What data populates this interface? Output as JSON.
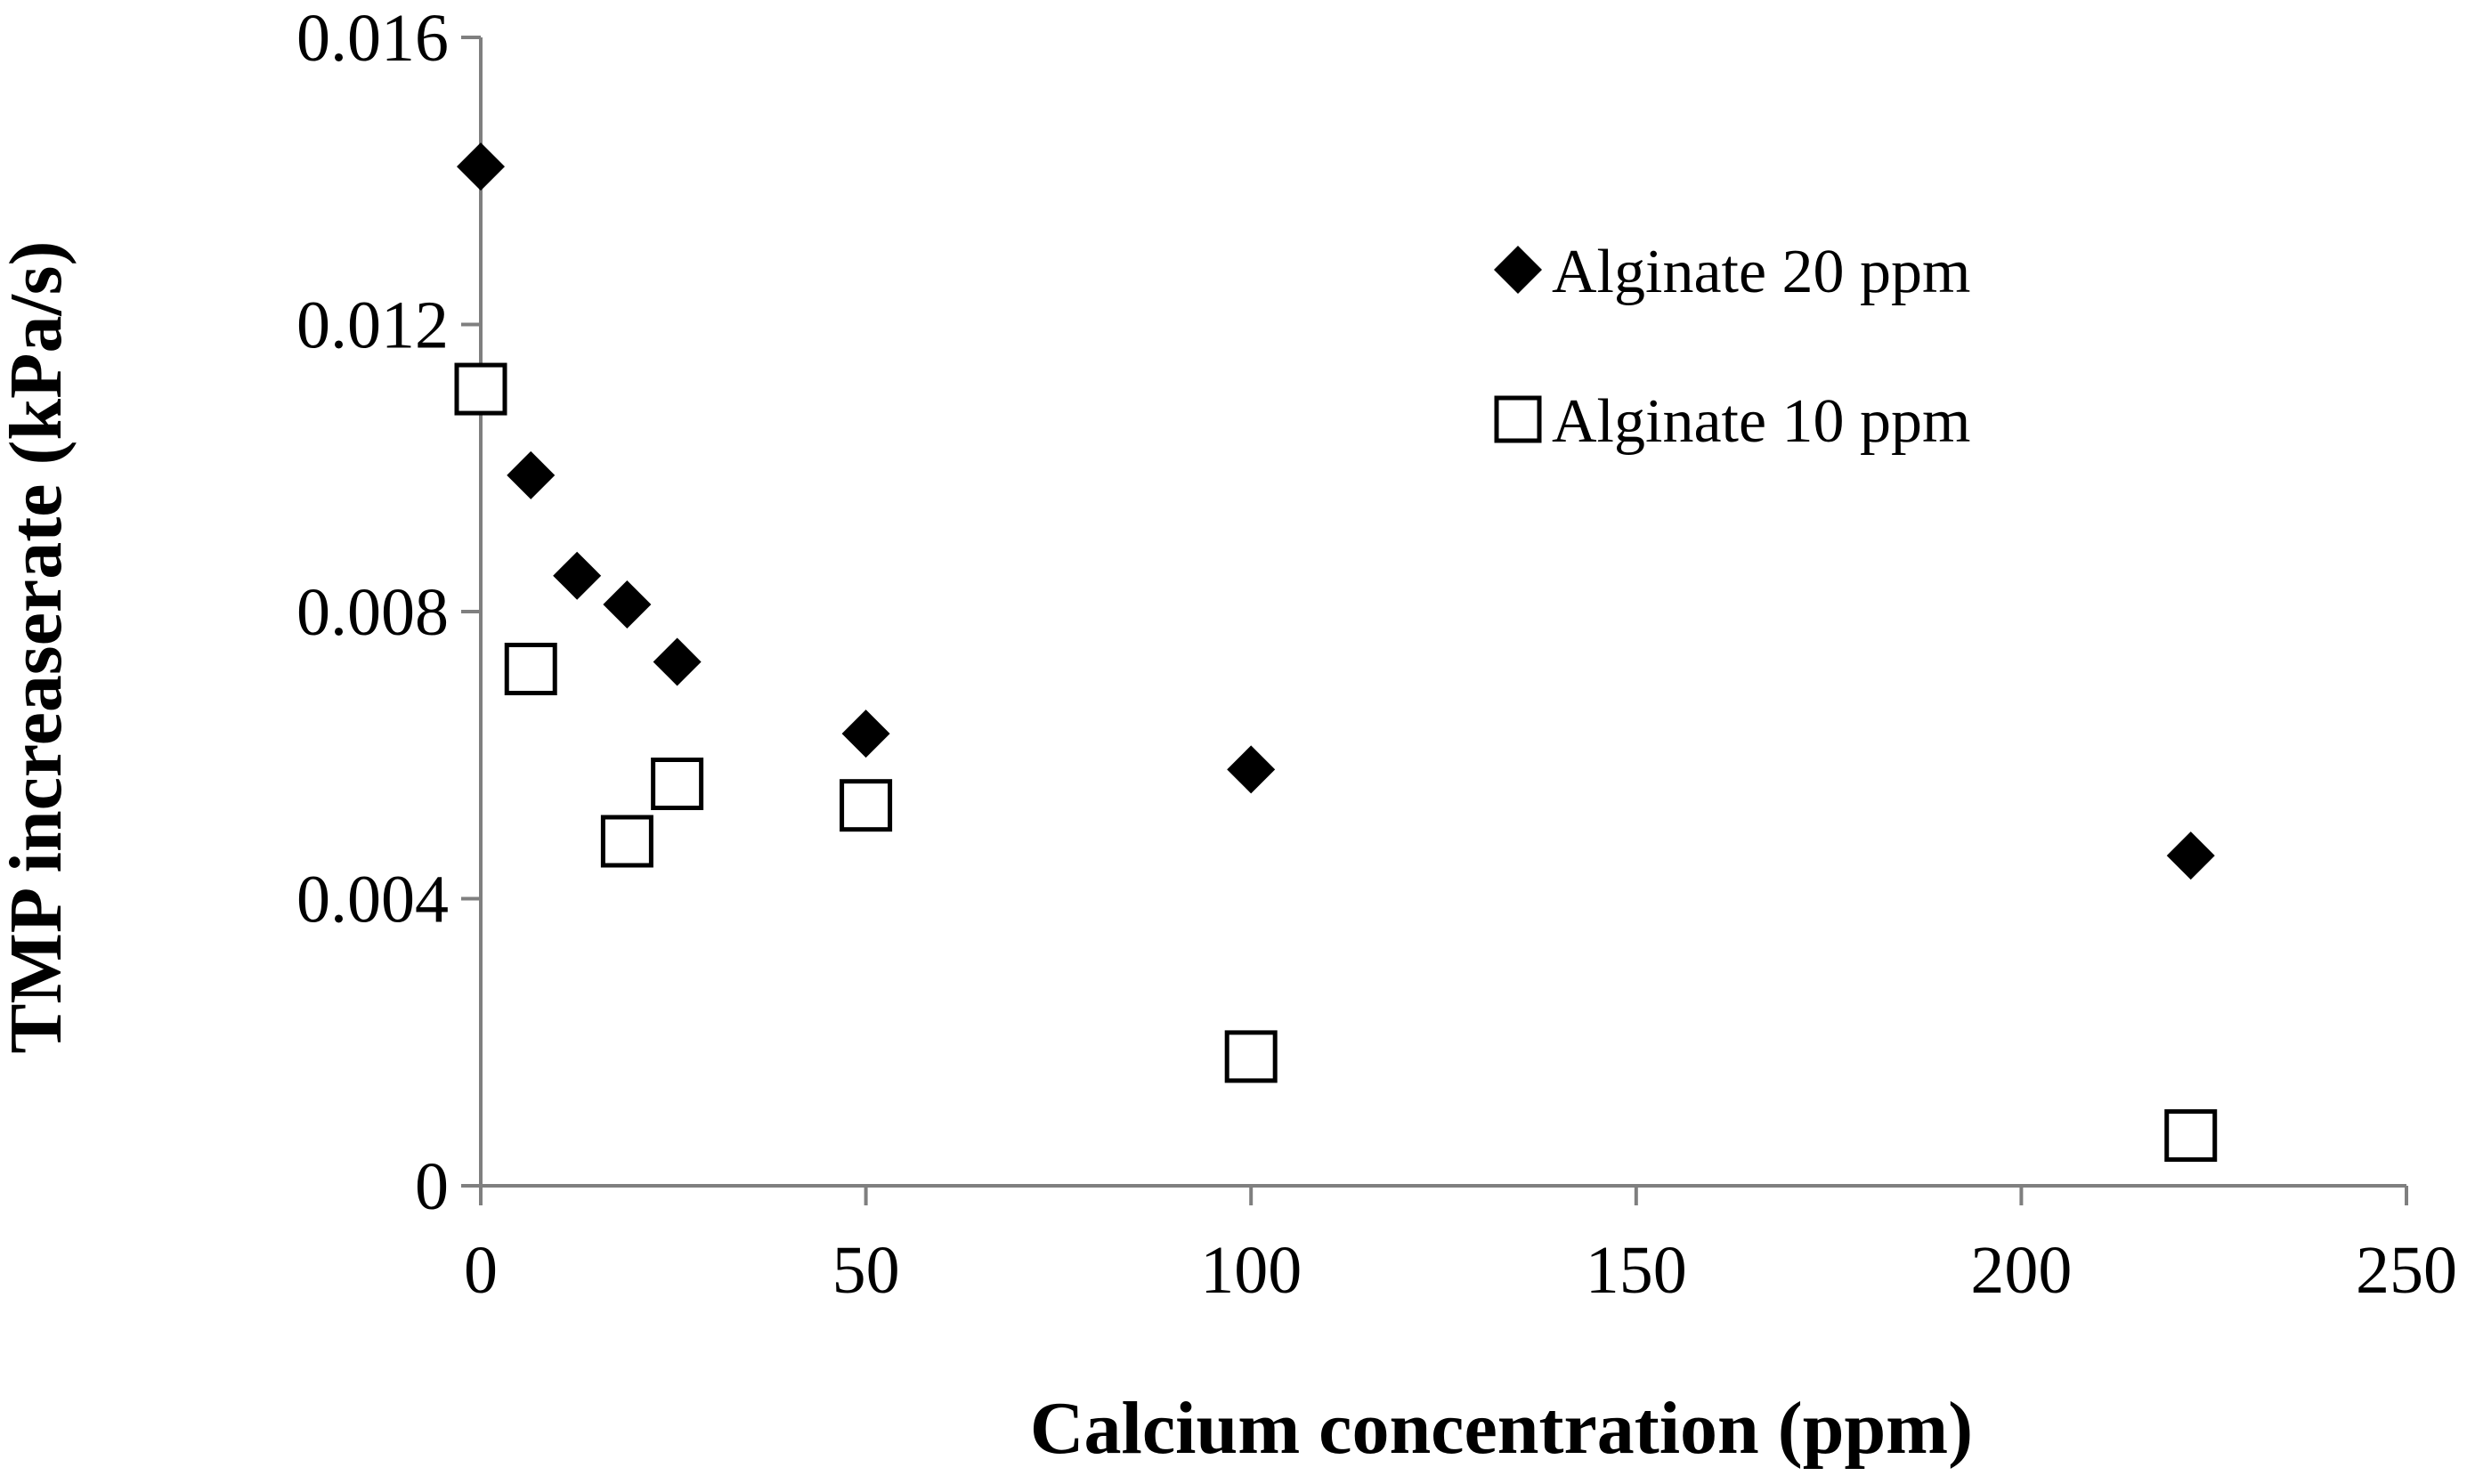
{
  "chart_data": {
    "type": "scatter",
    "title": "",
    "xlabel": "Calcium concentration (ppm)",
    "ylabel": "TMP increaserate (kPa/s)",
    "xlim": [
      0,
      250
    ],
    "ylim": [
      0,
      0.016
    ],
    "xticks": [
      "0",
      "50",
      "100",
      "150",
      "200",
      "250"
    ],
    "xtick_values": [
      0,
      50,
      100,
      150,
      200,
      250
    ],
    "yticks": [
      "0",
      "0.004",
      "0.008",
      "0.012",
      "0.016"
    ],
    "ytick_values": [
      0,
      0.004,
      0.008,
      0.012,
      0.016
    ],
    "grid": false,
    "legend_position": "top-right",
    "series": [
      {
        "name": "Alginate 20 ppm",
        "marker": "diamond-filled",
        "color": "#000000",
        "points": [
          {
            "x": 0,
            "y": 0.0142
          },
          {
            "x": 6.5,
            "y": 0.0099
          },
          {
            "x": 12.5,
            "y": 0.0085
          },
          {
            "x": 19,
            "y": 0.0081
          },
          {
            "x": 25.5,
            "y": 0.0073
          },
          {
            "x": 50,
            "y": 0.0063
          },
          {
            "x": 100,
            "y": 0.0058
          },
          {
            "x": 222,
            "y": 0.0046
          }
        ]
      },
      {
        "name": "Alginate 10 ppm",
        "marker": "square-open",
        "color": "#000000",
        "points": [
          {
            "x": 0,
            "y": 0.0111
          },
          {
            "x": 6.5,
            "y": 0.0072
          },
          {
            "x": 19,
            "y": 0.0048
          },
          {
            "x": 25.5,
            "y": 0.0056
          },
          {
            "x": 50,
            "y": 0.0053
          },
          {
            "x": 100,
            "y": 0.0018
          },
          {
            "x": 222,
            "y": 0.0007
          }
        ]
      }
    ]
  }
}
